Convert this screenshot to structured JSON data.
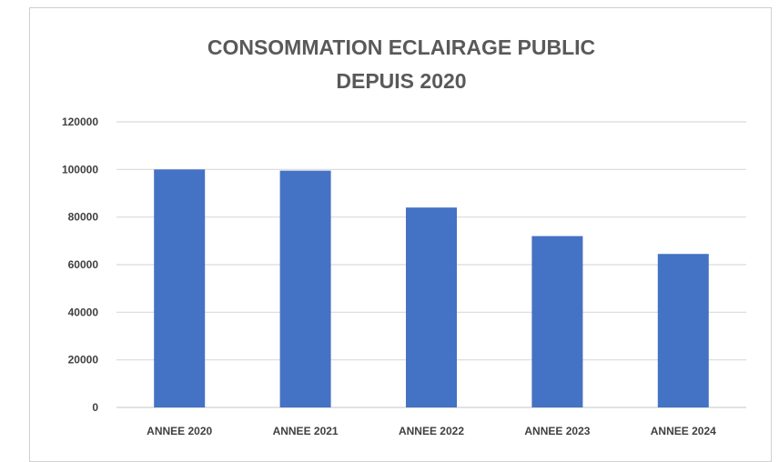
{
  "chart_data": {
    "type": "bar",
    "title_lines": [
      "CONSOMMATION ECLAIRAGE PUBLIC",
      "DEPUIS 2020"
    ],
    "categories": [
      "ANNEE 2020",
      "ANNEE 2021",
      "ANNEE 2022",
      "ANNEE 2023",
      "ANNEE 2024"
    ],
    "values": [
      100000,
      99500,
      84000,
      72000,
      64500
    ],
    "ylim": [
      0,
      120000
    ],
    "yticks": [
      0,
      20000,
      40000,
      60000,
      80000,
      100000,
      120000
    ],
    "grid": true,
    "bar_color": "#4472C4",
    "gridline_color": "#d9d9d9"
  }
}
